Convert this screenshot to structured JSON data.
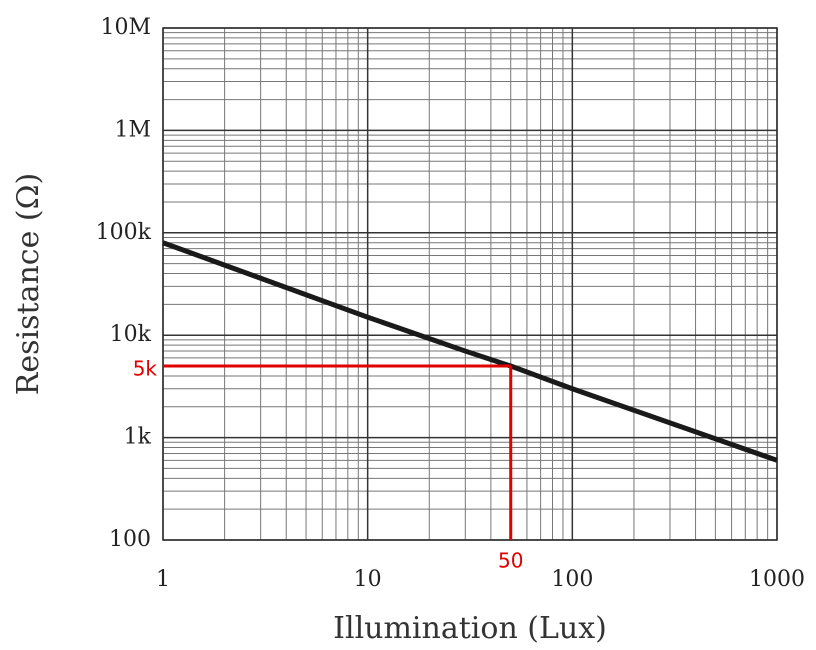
{
  "chart_data": {
    "type": "line",
    "x_label": "Illumination (Lux)",
    "y_label": "Resistance (Ω)",
    "xscale": "log",
    "yscale": "log",
    "xlim": [
      1,
      1000
    ],
    "ylim": [
      100,
      10000000
    ],
    "xticks": [
      1,
      10,
      100,
      1000
    ],
    "yticks": [
      100,
      {
        "value": 1000,
        "label": "1k"
      },
      {
        "value": 10000,
        "label": "10k"
      },
      {
        "value": 100000,
        "label": "100k"
      },
      {
        "value": 1000000,
        "label": "1M"
      },
      {
        "value": 10000000,
        "label": "10M"
      }
    ],
    "grid": true,
    "minor_grid": true,
    "x": [
      1,
      10,
      30,
      50,
      100,
      1000
    ],
    "values": [
      80000,
      15000,
      7000,
      5000,
      3000,
      600
    ],
    "color": "#1a1a1a",
    "annotations": [
      {
        "x": {
          "value": 50,
          "label": "50"
        },
        "y": {
          "value": 5000,
          "label": "5k"
        },
        "color": "#e00000"
      }
    ]
  }
}
